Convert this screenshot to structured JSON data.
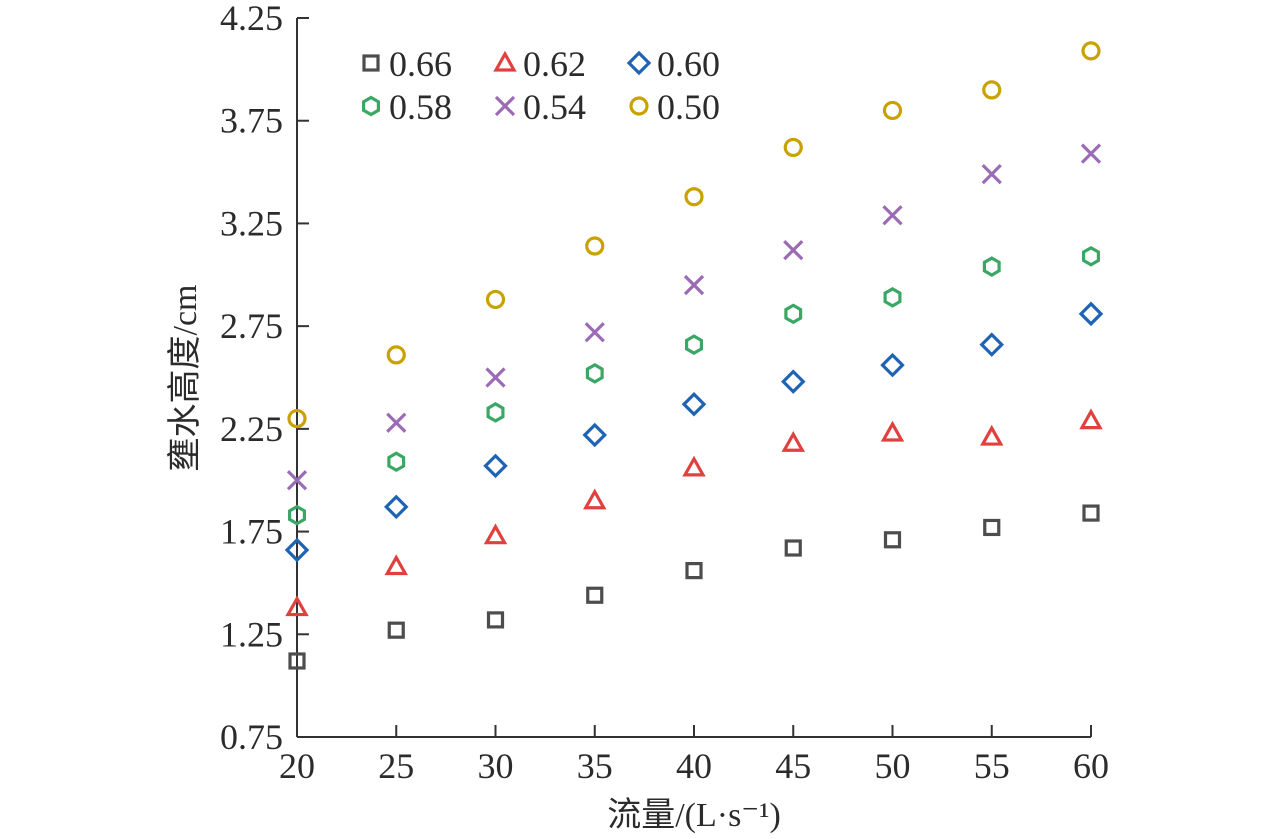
{
  "chart_data": {
    "type": "scatter",
    "title": "",
    "xlabel": "流量/(L·s⁻¹)",
    "ylabel": "壅水高度/cm",
    "xlim": [
      20,
      60
    ],
    "ylim": [
      0.75,
      4.25
    ],
    "x_ticks": [
      "20",
      "25",
      "30",
      "35",
      "40",
      "45",
      "50",
      "55",
      "60"
    ],
    "y_ticks": [
      "4.25",
      "3.75",
      "3.25",
      "2.75",
      "2.25",
      "1.75",
      "1.25",
      "0.75"
    ],
    "grid": false,
    "legend": "top-left",
    "x": [
      20,
      25,
      30,
      35,
      40,
      45,
      50,
      55,
      60
    ],
    "series": [
      {
        "name": "0.66",
        "marker": "square",
        "color": "#4d4d4d",
        "values": [
          1.12,
          1.27,
          1.32,
          1.44,
          1.56,
          1.67,
          1.71,
          1.77,
          1.84
        ]
      },
      {
        "name": "0.62",
        "marker": "triangle",
        "color": "#e0413f",
        "values": [
          1.38,
          1.58,
          1.73,
          1.9,
          2.06,
          2.18,
          2.23,
          2.21,
          2.29
        ]
      },
      {
        "name": "0.60",
        "marker": "diamond",
        "color": "#1f64b4",
        "values": [
          1.66,
          1.87,
          2.07,
          2.22,
          2.37,
          2.48,
          2.56,
          2.66,
          2.81
        ]
      },
      {
        "name": "0.58",
        "marker": "hexagon",
        "color": "#3aa864",
        "values": [
          1.83,
          2.09,
          2.33,
          2.52,
          2.66,
          2.81,
          2.89,
          3.04,
          3.09
        ]
      },
      {
        "name": "0.54",
        "marker": "cross",
        "color": "#9b6bb5",
        "values": [
          2.0,
          2.28,
          2.5,
          2.72,
          2.95,
          3.12,
          3.29,
          3.49,
          3.59
        ]
      },
      {
        "name": "0.50",
        "marker": "circle",
        "color": "#c9a200",
        "values": [
          2.3,
          2.61,
          2.88,
          3.14,
          3.38,
          3.62,
          3.8,
          3.9,
          4.09
        ]
      }
    ]
  }
}
